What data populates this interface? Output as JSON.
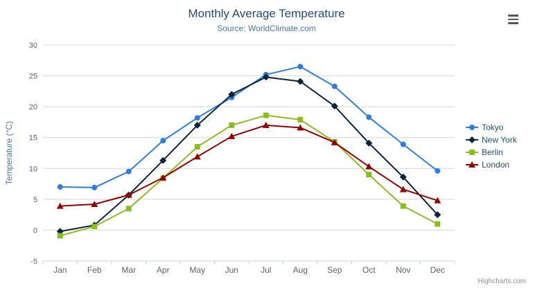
{
  "title": "Monthly Average Temperature",
  "subtitle": "Source: WorldClimate.com",
  "credits": "Highcharts.com",
  "icons": {
    "export": "hamburger-menu-icon"
  },
  "colors": {
    "title": "#274b6d",
    "subtitle": "#4d759e",
    "axis_title": "#4d759e",
    "axis_labels": "#606060",
    "gridline": "#d8d8d8",
    "axis_line": "#c0d0e0"
  },
  "chart_data": {
    "type": "line",
    "categories": [
      "Jan",
      "Feb",
      "Mar",
      "Apr",
      "May",
      "Jun",
      "Jul",
      "Aug",
      "Sep",
      "Oct",
      "Nov",
      "Dec"
    ],
    "title": "Monthly Average Temperature",
    "subtitle": "Source: WorldClimate.com",
    "xlabel": "",
    "ylabel": "Temperature (°C)",
    "ylim": [
      -5,
      30
    ],
    "ytick_interval": 5,
    "grid": true,
    "legend_position": "right",
    "series": [
      {
        "name": "Tokyo",
        "color": "#2f7ed8",
        "marker": "circle",
        "values": [
          7.0,
          6.9,
          9.5,
          14.5,
          18.2,
          21.5,
          25.2,
          26.5,
          23.3,
          18.3,
          13.9,
          9.6
        ]
      },
      {
        "name": "New York",
        "color": "#0d233a",
        "marker": "diamond",
        "values": [
          -0.2,
          0.8,
          5.7,
          11.3,
          17.0,
          22.0,
          24.8,
          24.1,
          20.1,
          14.1,
          8.6,
          2.5
        ]
      },
      {
        "name": "Berlin",
        "color": "#8bbc21",
        "marker": "square",
        "values": [
          -0.9,
          0.6,
          3.5,
          8.4,
          13.5,
          17.0,
          18.6,
          17.9,
          14.3,
          9.0,
          3.9,
          1.0
        ]
      },
      {
        "name": "London",
        "color": "#910000",
        "marker": "triangle",
        "values": [
          3.9,
          4.2,
          5.7,
          8.5,
          11.9,
          15.2,
          17.0,
          16.6,
          14.2,
          10.3,
          6.6,
          4.8
        ]
      }
    ]
  }
}
